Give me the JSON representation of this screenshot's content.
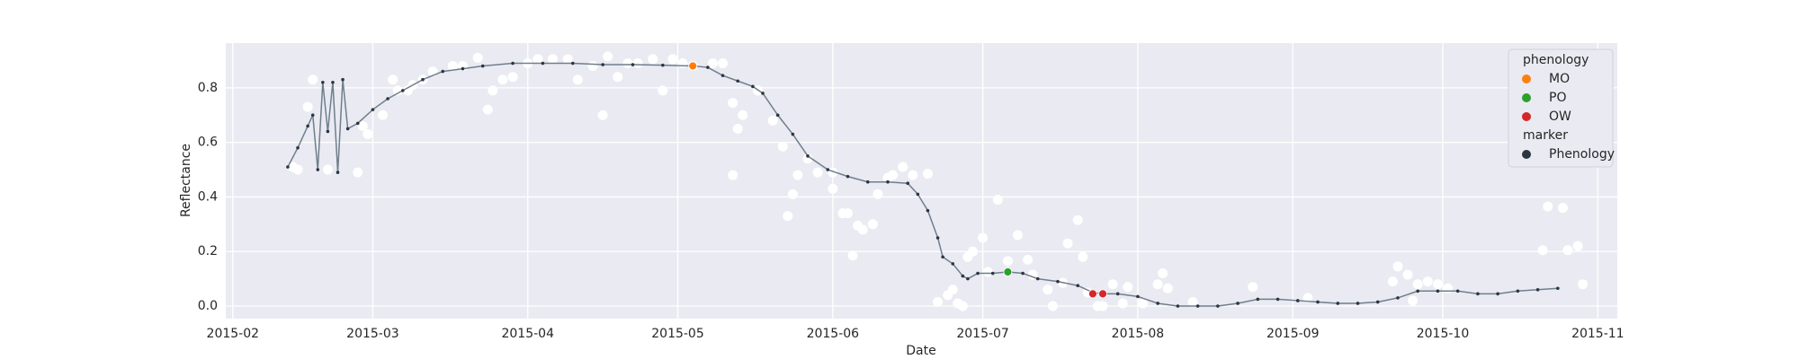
{
  "chart_data": {
    "type": "scatter",
    "xlabel": "Date",
    "ylabel": "Reflectance",
    "xlim": [
      30.6,
      308.9
    ],
    "ylim": [
      -0.046,
      0.964
    ],
    "xticks": [
      {
        "value": 32,
        "label": "2015-02"
      },
      {
        "value": 60,
        "label": "2015-03"
      },
      {
        "value": 91,
        "label": "2015-04"
      },
      {
        "value": 121,
        "label": "2015-05"
      },
      {
        "value": 152,
        "label": "2015-06"
      },
      {
        "value": 182,
        "label": "2015-07"
      },
      {
        "value": 213,
        "label": "2015-08"
      },
      {
        "value": 244,
        "label": "2015-09"
      },
      {
        "value": 274,
        "label": "2015-10"
      },
      {
        "value": 305,
        "label": "2015-11"
      }
    ],
    "yticks": [
      {
        "value": 0,
        "label": "0.0"
      },
      0.2,
      0.4,
      0.6,
      0.8
    ],
    "grid": true,
    "background": "#eaeaf2",
    "legend": {
      "loc": "upper right",
      "titles": [
        "phenology",
        "marker"
      ]
    },
    "series": [
      {
        "color": "#ffffff",
        "x": [
          44,
          45,
          47,
          48,
          51,
          57,
          58,
          59,
          62,
          64,
          65,
          67,
          68,
          70,
          72,
          76,
          78,
          81,
          83,
          84,
          86,
          88,
          91,
          93,
          96,
          99,
          101,
          104,
          106,
          107,
          109,
          111,
          113,
          116,
          118,
          120,
          122,
          124,
          128,
          130,
          132,
          132,
          133,
          134,
          137,
          140,
          142,
          143,
          144,
          145,
          147,
          149,
          152,
          152,
          154,
          155,
          156,
          157,
          158,
          160,
          161,
          163,
          164,
          166,
          168,
          171,
          173,
          175,
          176,
          177,
          178,
          179,
          180,
          182,
          183,
          185,
          187,
          189,
          191,
          192,
          195,
          196,
          198,
          199,
          201,
          202,
          203,
          205,
          206,
          208,
          210,
          211,
          214,
          217,
          218,
          219,
          224,
          236,
          247,
          264,
          265,
          267,
          268,
          269,
          271,
          273,
          275,
          294,
          295,
          298,
          299,
          301,
          302
        ],
        "values": [
          0.51,
          0.5,
          0.73,
          0.83,
          0.5,
          0.49,
          0.66,
          0.63,
          0.7,
          0.83,
          0.79,
          0.79,
          0.81,
          0.83,
          0.86,
          0.88,
          0.88,
          0.91,
          0.72,
          0.79,
          0.83,
          0.84,
          0.89,
          0.905,
          0.905,
          0.905,
          0.83,
          0.88,
          0.7,
          0.915,
          0.84,
          0.89,
          0.89,
          0.905,
          0.79,
          0.905,
          0.89,
          0.88,
          0.89,
          0.89,
          0.48,
          0.745,
          0.65,
          0.7,
          0.79,
          0.68,
          0.585,
          0.33,
          0.41,
          0.48,
          0.54,
          0.49,
          0.49,
          0.43,
          0.34,
          0.34,
          0.185,
          0.295,
          0.28,
          0.3,
          0.41,
          0.47,
          0.48,
          0.51,
          0.48,
          0.485,
          0.015,
          0.04,
          0.06,
          0.01,
          0,
          0.18,
          0.2,
          0.25,
          0.125,
          0.39,
          0.165,
          0.26,
          0.17,
          0.115,
          0.06,
          0,
          0.085,
          0.23,
          0.315,
          0.18,
          0.05,
          0,
          0,
          0.08,
          0.01,
          0.07,
          0.01,
          0.08,
          0.12,
          0.065,
          0.015,
          0.07,
          0.03,
          0.09,
          0.145,
          0.115,
          0.02,
          0.08,
          0.09,
          0.08,
          0.065,
          0.205,
          0.365,
          0.36,
          0.205,
          0.22,
          0.08
        ]
      },
      {
        "name": "Phenology",
        "color": "#2b3640",
        "line_color": "#6f7f8c",
        "x": [
          43,
          45,
          47,
          48,
          49,
          50,
          51,
          52,
          53,
          54,
          55,
          57,
          60,
          63,
          66,
          70,
          74,
          78,
          82,
          88,
          94,
          100,
          106,
          112,
          118,
          124,
          127,
          130,
          133,
          136,
          138,
          141,
          144,
          147,
          151,
          155,
          159,
          163,
          167,
          169,
          171,
          173,
          174,
          176,
          178,
          179,
          181,
          184,
          187,
          190,
          193,
          197,
          201,
          204,
          206,
          209,
          213,
          217,
          221,
          225,
          229,
          233,
          237,
          241,
          245,
          249,
          253,
          257,
          261,
          265,
          269,
          273,
          277,
          281,
          285,
          289,
          293,
          297
        ],
        "values": [
          0.51,
          0.58,
          0.66,
          0.7,
          0.5,
          0.82,
          0.64,
          0.82,
          0.49,
          0.83,
          0.65,
          0.67,
          0.72,
          0.76,
          0.79,
          0.83,
          0.86,
          0.87,
          0.88,
          0.89,
          0.89,
          0.89,
          0.885,
          0.885,
          0.883,
          0.88,
          0.875,
          0.845,
          0.825,
          0.805,
          0.78,
          0.7,
          0.63,
          0.55,
          0.5,
          0.475,
          0.455,
          0.455,
          0.45,
          0.41,
          0.35,
          0.25,
          0.18,
          0.155,
          0.11,
          0.1,
          0.12,
          0.12,
          0.125,
          0.12,
          0.1,
          0.09,
          0.075,
          0.05,
          0.045,
          0.045,
          0.035,
          0.01,
          0.0,
          0.0,
          0.0,
          0.01,
          0.025,
          0.025,
          0.02,
          0.015,
          0.01,
          0.01,
          0.015,
          0.03,
          0.055,
          0.055,
          0.055,
          0.045,
          0.045,
          0.055,
          0.06,
          0.065
        ]
      },
      {
        "name": "MO",
        "color": "#ff7f0e",
        "x": [
          124
        ],
        "values": [
          0.88
        ]
      },
      {
        "name": "PO",
        "color": "#2ca02c",
        "x": [
          187
        ],
        "values": [
          0.125
        ]
      },
      {
        "name": "OW",
        "color": "#d62728",
        "x": [
          204,
          206
        ],
        "values": [
          0.045,
          0.045
        ]
      }
    ]
  }
}
